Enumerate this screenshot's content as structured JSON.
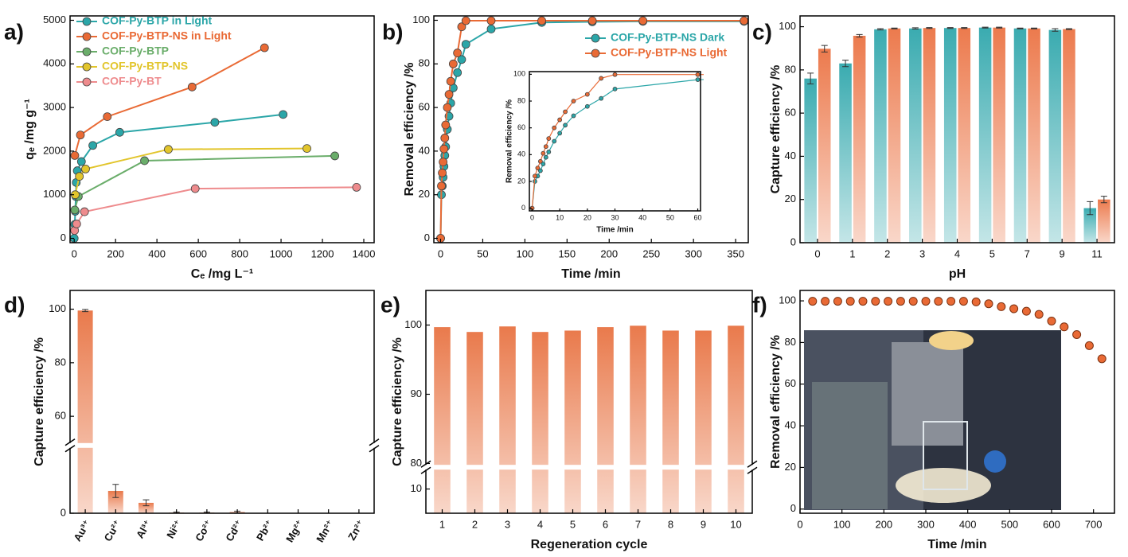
{
  "chart_data": [
    {
      "type": "line",
      "panel_label": "a)",
      "xlabel": "Cₑ /mg L⁻¹",
      "ylabel": "qₑ /mg g⁻¹",
      "xlim": [
        -20,
        1450
      ],
      "xticks": [
        0,
        200,
        400,
        600,
        800,
        1000,
        1200,
        1400
      ],
      "ylim": [
        -100,
        5100
      ],
      "yticks": [
        0,
        1000,
        2000,
        3000,
        4000,
        5000
      ],
      "legend": "upper left",
      "series": [
        {
          "name": "COF-Py-BTP in Light",
          "color": "#2ba6a8",
          "x": [
            0,
            3,
            5,
            8,
            10,
            15,
            35,
            90,
            220,
            680,
            1010
          ],
          "values": [
            0,
            320,
            620,
            960,
            1280,
            1550,
            1760,
            2130,
            2430,
            2660,
            2840
          ]
        },
        {
          "name": "COF-Py-BTP-NS in Light",
          "color": "#e96a35",
          "x": [
            3,
            30,
            160,
            570,
            920
          ],
          "values": [
            1900,
            2370,
            2790,
            3470,
            4370
          ]
        },
        {
          "name": "COF-Py-BTP",
          "color": "#6aad6a",
          "x": [
            3,
            20,
            340,
            1260
          ],
          "values": [
            650,
            960,
            1780,
            1890
          ]
        },
        {
          "name": "COF-Py-BTP-NS",
          "color": "#e2c52c",
          "x": [
            5,
            25,
            55,
            455,
            1125
          ],
          "values": [
            1000,
            1420,
            1590,
            2040,
            2060
          ]
        },
        {
          "name": "COF-Py-BT",
          "color": "#ee8b8d",
          "x": [
            2,
            12,
            50,
            585,
            1365
          ],
          "values": [
            180,
            330,
            610,
            1140,
            1170
          ]
        }
      ]
    },
    {
      "type": "line",
      "panel_label": "b)",
      "xlabel": "Time /min",
      "ylabel": "Removal efficiency /%",
      "xlim": [
        -8,
        365
      ],
      "xticks": [
        0,
        50,
        100,
        150,
        200,
        250,
        300,
        350
      ],
      "ylim": [
        -2,
        102
      ],
      "yticks": [
        0,
        20,
        40,
        60,
        80,
        100
      ],
      "legend": "upper right",
      "x": [
        0,
        1,
        2,
        3,
        4,
        5,
        6,
        8,
        10,
        12,
        15,
        20,
        25,
        30,
        60,
        120,
        180,
        240,
        360
      ],
      "series": [
        {
          "name": "COF-Py-BTP-NS Dark",
          "color": "#2ba6a8",
          "values": [
            0,
            20,
            24,
            28,
            33,
            38,
            42,
            50,
            56,
            62,
            69,
            76,
            82,
            89,
            96,
            99,
            99.3,
            99.5,
            99.5
          ]
        },
        {
          "name": "COF-Py-BTP-NS Light",
          "color": "#e96a35",
          "values": [
            0,
            24,
            30,
            35,
            41,
            46,
            52,
            60,
            66,
            72,
            80,
            85,
            97,
            99.8,
            99.8,
            99.8,
            99.8,
            99.8,
            99.8
          ]
        }
      ],
      "inset": {
        "xlabel": "Time /min",
        "ylabel": "Removal efficiency /%",
        "xlim": [
          -1,
          61
        ],
        "xticks": [
          0,
          10,
          20,
          30,
          40,
          50,
          60
        ],
        "ylim": [
          -2,
          102
        ],
        "yticks": [
          0,
          20,
          40,
          60,
          80,
          100
        ]
      }
    },
    {
      "type": "bar",
      "panel_label": "c)",
      "xlabel": "pH",
      "ylabel": "Capture efficiency /%",
      "categories": [
        "0",
        "1",
        "2",
        "3",
        "4",
        "5",
        "7",
        "9",
        "11"
      ],
      "ylim": [
        0,
        105
      ],
      "yticks": [
        0,
        20,
        40,
        60,
        80,
        100
      ],
      "series": [
        {
          "color": "#3aabb0",
          "values": [
            76,
            83,
            98.8,
            99.2,
            99.4,
            99.6,
            99.2,
            98.5,
            16
          ],
          "errors": [
            2.5,
            1.5,
            0.3,
            0.3,
            0.2,
            0.2,
            0.2,
            0.6,
            3
          ]
        },
        {
          "color": "#ec7a4d",
          "values": [
            89.8,
            95.8,
            99.2,
            99.4,
            99.4,
            99.6,
            99.2,
            98.9,
            20
          ],
          "errors": [
            1.5,
            0.6,
            0.2,
            0.2,
            0.2,
            0.2,
            0.2,
            0.2,
            1.5
          ]
        }
      ]
    },
    {
      "type": "bar",
      "panel_label": "d)",
      "ylabel": "Capture efficiency /%",
      "categories": [
        "Au³⁺",
        "Cu²⁺",
        "Al³⁺",
        "Ni²⁺",
        "Co²⁺",
        "Cd²⁺",
        "Pb²⁺",
        "Mg²⁺",
        "Mn²⁺",
        "Zn²⁺"
      ],
      "ylim": [
        0,
        107
      ],
      "ybreak": [
        22,
        50
      ],
      "yticks": [
        0,
        60,
        80,
        100
      ],
      "color": "#e97a4c",
      "values": [
        99.5,
        7.5,
        3.5,
        0.2,
        0.2,
        0.4,
        0,
        0,
        0,
        0
      ],
      "errors": [
        0.4,
        2.2,
        1.0,
        0.2,
        0.2,
        0.3,
        0,
        0,
        0,
        0
      ]
    },
    {
      "type": "bar",
      "panel_label": "e)",
      "xlabel": "Regeneration cycle",
      "ylabel": "Capture efficiency /%",
      "categories": [
        "1",
        "2",
        "3",
        "4",
        "5",
        "6",
        "7",
        "8",
        "9",
        "10"
      ],
      "ylim": [
        0,
        105
      ],
      "ybreak": [
        18,
        79.8
      ],
      "yticks": [
        10,
        80,
        90,
        100
      ],
      "color": "#e97a4c",
      "values": [
        99.7,
        99.0,
        99.8,
        99.0,
        99.2,
        99.7,
        99.9,
        99.2,
        99.2,
        99.9
      ]
    },
    {
      "type": "scatter",
      "panel_label": "f)",
      "xlabel": "Time /min",
      "ylabel": "Removal efficiency /%",
      "xlim": [
        0,
        750
      ],
      "xticks": [
        0,
        100,
        200,
        300,
        400,
        500,
        600,
        700
      ],
      "ylim": [
        -2,
        105
      ],
      "yticks": [
        0,
        20,
        40,
        60,
        80,
        100
      ],
      "color": "#e96a35",
      "x": [
        30,
        60,
        90,
        120,
        150,
        180,
        210,
        240,
        270,
        300,
        330,
        360,
        390,
        420,
        450,
        480,
        510,
        540,
        570,
        600,
        630,
        660,
        690,
        720
      ],
      "values": [
        99.8,
        99.8,
        99.8,
        99.8,
        99.8,
        99.8,
        99.8,
        99.8,
        99.8,
        99.8,
        99.8,
        99.8,
        99.8,
        99.5,
        98.6,
        97.2,
        96.2,
        95,
        93.5,
        90.3,
        87.5,
        83.8,
        78.5,
        72.2
      ]
    }
  ]
}
